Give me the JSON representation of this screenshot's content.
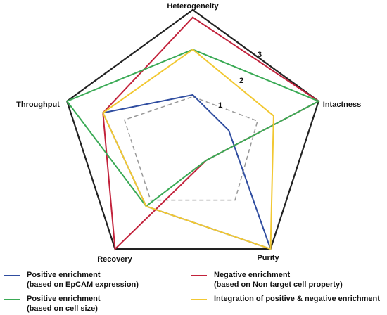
{
  "chart_data": {
    "type": "radar",
    "axes": [
      "Heterogeneity",
      "Intactness",
      "Purity",
      "Recovery",
      "Throughput"
    ],
    "ring_labels": [
      "1",
      "2",
      "3"
    ],
    "max": 3.5,
    "colors": {
      "outline": "#222222",
      "blue": "#2f4da0",
      "red": "#c2223b",
      "green": "#3aaa55",
      "yellow": "#f2c832",
      "dashed": "#999999"
    },
    "reference": {
      "style": "dashed",
      "values": [
        1.2,
        1.8,
        1.9,
        1.9,
        1.9
      ]
    },
    "series": [
      {
        "name": "Positive enrichment",
        "note": "(based on EpCAM expression)",
        "color_key": "blue",
        "values": [
          1.25,
          1.0,
          3.5,
          2.1,
          2.5
        ]
      },
      {
        "name": "Negative enrichment",
        "note": "(based on Non target cell property)",
        "color_key": "red",
        "values": [
          3.3,
          3.5,
          0.6,
          3.5,
          2.5
        ]
      },
      {
        "name": "Positive enrichment",
        "note": "(based on cell size)",
        "color_key": "green",
        "values": [
          2.45,
          3.5,
          0.6,
          2.1,
          3.5
        ]
      },
      {
        "name": "Integration of positive & negative enrichment",
        "note": "",
        "color_key": "yellow",
        "values": [
          2.45,
          2.25,
          3.5,
          2.1,
          2.5
        ]
      }
    ]
  }
}
